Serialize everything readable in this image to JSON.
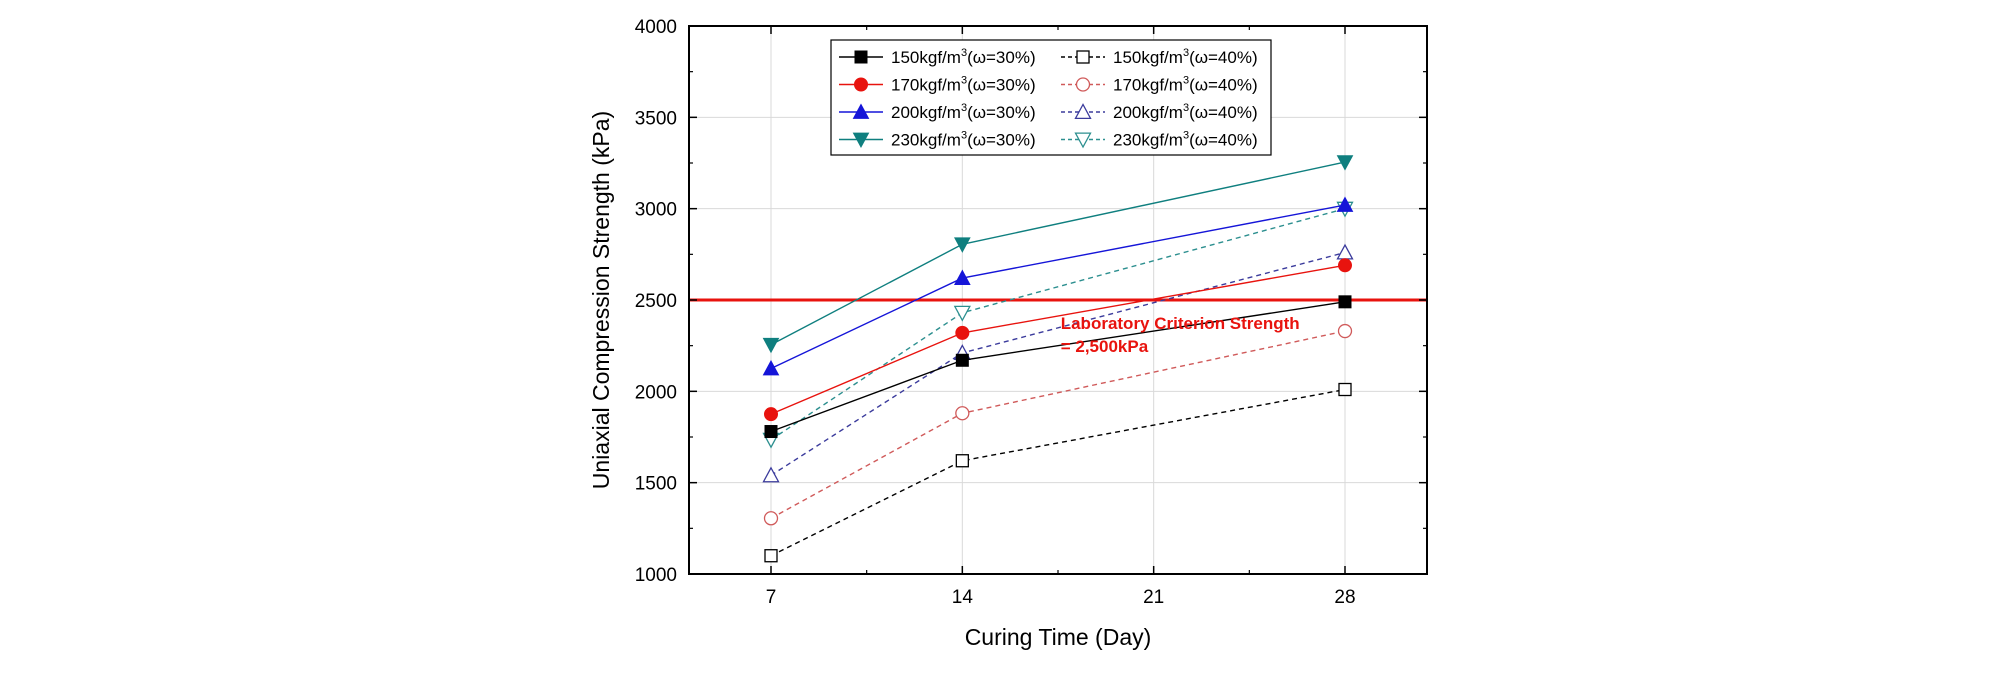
{
  "chart_data": {
    "type": "line",
    "title": "",
    "xlabel": "Curing Time (Day)",
    "ylabel": "Uniaxial Compression Strength (kPa)",
    "x": [
      7,
      14,
      28
    ],
    "xlim": [
      4,
      31
    ],
    "ylim": [
      1000,
      4000
    ],
    "xticks": [
      7,
      14,
      21,
      28
    ],
    "yticks": [
      1000,
      1500,
      2000,
      2500,
      3000,
      3500,
      4000
    ],
    "grid": true,
    "legend_position": "top-center",
    "series": [
      {
        "name": "150kgf/m3(ω=30%)",
        "name_base": "150kgf/m",
        "name_sup": "3",
        "name_tail": "(ω=30%)",
        "values": [
          1780,
          2170,
          2490
        ],
        "color": "#000000",
        "marker": "square",
        "filled": true,
        "dashed": false
      },
      {
        "name": "170kgf/m3(ω=30%)",
        "name_base": "170kgf/m",
        "name_sup": "3",
        "name_tail": "(ω=30%)",
        "values": [
          1875,
          2320,
          2690
        ],
        "color": "#e8130e",
        "marker": "circle",
        "filled": true,
        "dashed": false
      },
      {
        "name": "200kgf/m3(ω=30%)",
        "name_base": "200kgf/m",
        "name_sup": "3",
        "name_tail": "(ω=30%)",
        "values": [
          2125,
          2620,
          3020
        ],
        "color": "#1515d8",
        "marker": "triangle-up",
        "filled": true,
        "dashed": false
      },
      {
        "name": "230kgf/m3(ω=30%)",
        "name_base": "230kgf/m",
        "name_sup": "3",
        "name_tail": "(ω=30%)",
        "values": [
          2255,
          2805,
          3255
        ],
        "color": "#0f7f7f",
        "marker": "triangle-down",
        "filled": true,
        "dashed": false
      },
      {
        "name": "150kgf/m3(ω=40%)",
        "name_base": "150kgf/m",
        "name_sup": "3",
        "name_tail": "(ω=40%)",
        "values": [
          1100,
          1620,
          2010
        ],
        "color": "#000000",
        "marker": "square",
        "filled": false,
        "dashed": true
      },
      {
        "name": "170kgf/m3(ω=40%)",
        "name_base": "170kgf/m",
        "name_sup": "3",
        "name_tail": "(ω=40%)",
        "values": [
          1305,
          1880,
          2330
        ],
        "color": "#d05a5a",
        "marker": "circle",
        "filled": false,
        "dashed": true
      },
      {
        "name": "200kgf/m3(ω=40%)",
        "name_base": "200kgf/m",
        "name_sup": "3",
        "name_tail": "(ω=40%)",
        "values": [
          1540,
          2210,
          2760
        ],
        "color": "#3b3b9c",
        "marker": "triangle-up",
        "filled": false,
        "dashed": true
      },
      {
        "name": "230kgf/m3(ω=40%)",
        "name_base": "230kgf/m",
        "name_sup": "3",
        "name_tail": "(ω=40%)",
        "values": [
          1735,
          2430,
          3000
        ],
        "color": "#2c8f8f",
        "marker": "triangle-down",
        "filled": false,
        "dashed": true
      }
    ],
    "reference_line": {
      "y": 2500,
      "color": "#e8130e",
      "label_line1": "Laboratory Criterion Strength",
      "label_line2": "= 2,500kPa"
    }
  }
}
